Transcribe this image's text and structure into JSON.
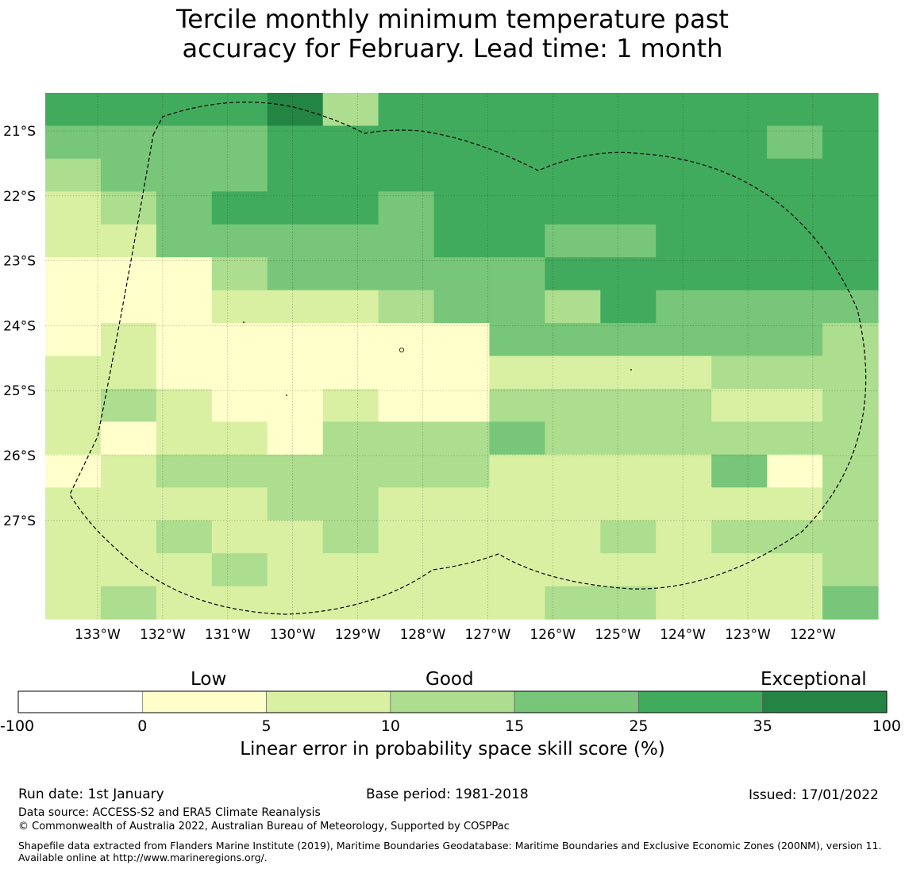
{
  "title": {
    "line1": "Tercile monthly minimum temperature past",
    "line2": "accuracy for February. Lead time: 1 month"
  },
  "map": {
    "lat_labels": [
      "21°S",
      "22°S",
      "23°S",
      "24°S",
      "25°S",
      "26°S",
      "27°S"
    ],
    "lon_labels": [
      "133°W",
      "132°W",
      "131°W",
      "130°W",
      "129°W",
      "128°W",
      "127°W",
      "126°W",
      "125°W",
      "124°W",
      "123°W",
      "122°W"
    ],
    "grid_rows": [
      "555563555555555",
      "444455555555545",
      "344455555555555",
      "234555455555555",
      "224444455445555",
      "111344444555555",
      "111222344354444",
      "121111114444443",
      "221111112222333",
      "232112113333223",
      "212213334333333",
      "123333332222413",
      "222233222222223",
      "223223222232333",
      "222322222222223",
      "232222222332224"
    ],
    "level_colors": [
      "#ffffff",
      "#ffffcc",
      "#d9f0a3",
      "#addd8e",
      "#78c679",
      "#41ab5d",
      "#238443"
    ]
  },
  "colorbar": {
    "levels": [
      "-100",
      "0",
      "5",
      "10",
      "15",
      "25",
      "35",
      "100"
    ],
    "colors": [
      "#ffffff",
      "#ffffcc",
      "#d9f0a3",
      "#addd8e",
      "#78c679",
      "#41ab5d",
      "#238443"
    ],
    "category_low": "Low",
    "category_good": "Good",
    "category_exceptional": "Exceptional",
    "axis_label": "Linear error in probability space skill score (%)"
  },
  "footer": {
    "run_date": "Run date: 1st January",
    "base_period": "Base period: 1981-2018",
    "issued": "Issued: 17/01/2022",
    "data_source": "Data source: ACCESS-S2 and ERA5 Climate Reanalysis",
    "copyright": "© Commonwealth of Australia 2022, Australian Bureau of Meteorology, Supported by COSPPac",
    "shapefile": "Shapefile data extracted from Flanders Marine Institute (2019), Maritime Boundaries Geodatabase: Maritime Boundaries and Exclusive Economic Zones (200NM), version 11. Available online at http://www.marineregions.org/."
  }
}
